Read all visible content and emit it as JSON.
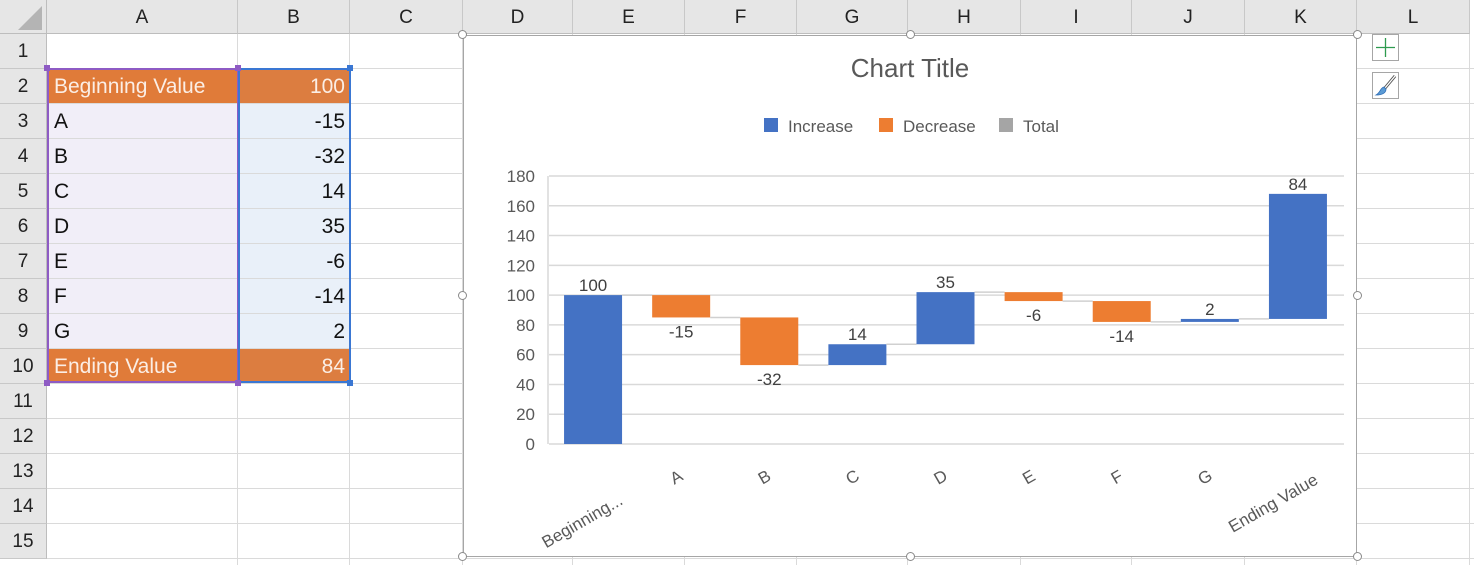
{
  "sheet": {
    "columns": [
      "A",
      "B",
      "C",
      "D",
      "E",
      "F",
      "G",
      "H",
      "I",
      "J",
      "K",
      "L"
    ],
    "rows": [
      "1",
      "2",
      "3",
      "4",
      "5",
      "6",
      "7",
      "8",
      "9",
      "10",
      "11",
      "12",
      "13",
      "14",
      "15"
    ],
    "cells": [
      {
        "label": "Beginning Value",
        "value": "100",
        "highlight": true
      },
      {
        "label": "A",
        "value": "-15"
      },
      {
        "label": "B",
        "value": "-32"
      },
      {
        "label": "C",
        "value": "14"
      },
      {
        "label": "D",
        "value": "35"
      },
      {
        "label": "E",
        "value": "-6"
      },
      {
        "label": "F",
        "value": "-14"
      },
      {
        "label": "G",
        "value": "2"
      },
      {
        "label": "Ending Value",
        "value": "84",
        "highlight": true
      }
    ],
    "highlight_color": "#e07b39",
    "colA_selection_color": "#f1eef8",
    "colB_selection_color": "#e9f0f9"
  },
  "chart_buttons": {
    "add_element": "plus-icon",
    "style": "paintbrush-icon"
  },
  "chart_data": {
    "type": "waterfall",
    "title": "Chart Title",
    "legend": [
      {
        "name": "Increase",
        "color": "#4472c4"
      },
      {
        "name": "Decrease",
        "color": "#ed7d31"
      },
      {
        "name": "Total",
        "color": "#a5a5a5"
      }
    ],
    "legend_position": "top",
    "categories": [
      "Beginning...",
      "A",
      "B",
      "C",
      "D",
      "E",
      "F",
      "G",
      "Ending Value"
    ],
    "values": [
      100,
      -15,
      -32,
      14,
      35,
      -6,
      -14,
      2,
      84
    ],
    "data_labels": [
      "100",
      "-15",
      "-32",
      "14",
      "35",
      "-6",
      "-14",
      "2",
      "84"
    ],
    "ylim": [
      0,
      180
    ],
    "yticks": [
      "0",
      "20",
      "40",
      "60",
      "80",
      "100",
      "120",
      "140",
      "160",
      "180"
    ],
    "grid": true
  }
}
